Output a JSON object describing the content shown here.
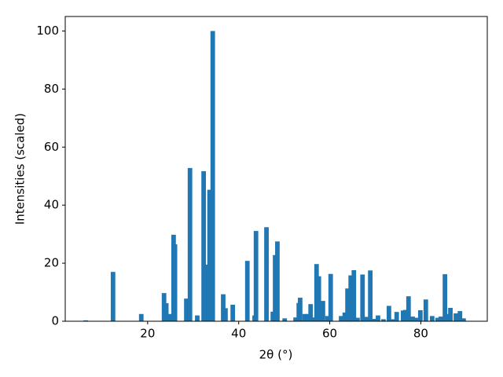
{
  "chart_data": {
    "type": "bar",
    "xlabel": "2θ (°)",
    "ylabel": "Intensities (scaled)",
    "color": "#1f77b4",
    "bar_width": 1,
    "x": [
      6.4,
      12.4,
      18.6,
      23.6,
      24.1,
      24.8,
      25.7,
      26.0,
      28.5,
      29.3,
      30.9,
      32.3,
      33.1,
      33.6,
      34.3,
      36.6,
      37.1,
      38.7,
      41.9,
      43.5,
      43.8,
      46.1,
      47.5,
      48.0,
      48.5,
      50.1,
      52.5,
      53.2,
      53.5,
      54.5,
      55.2,
      55.8,
      56.3,
      57.1,
      57.6,
      58.5,
      59.5,
      60.2,
      62.5,
      63.3,
      63.9,
      64.6,
      65.3,
      66.1,
      67.2,
      68.0,
      68.9,
      69.7,
      70.6,
      71.8,
      73.0,
      73.9,
      74.7,
      76.1,
      76.6,
      77.3,
      78.2,
      78.9,
      79.9,
      81.1,
      82.5,
      83.7,
      84.4,
      85.3,
      85.8,
      86.5,
      87.7,
      88.6,
      89.4
    ],
    "values": [
      0.3,
      17,
      2.5,
      9.7,
      6.2,
      2.5,
      29.8,
      26.5,
      7.8,
      52.8,
      2,
      51.7,
      19.5,
      45.3,
      100,
      9.3,
      4.5,
      5.7,
      20.8,
      2,
      31.1,
      32.4,
      3.3,
      22.8,
      27.5,
      1,
      1.3,
      6.3,
      8.1,
      2.5,
      2.5,
      5.9,
      1.3,
      19.7,
      15.5,
      7,
      1.8,
      16.3,
      1.8,
      3,
      11.3,
      15.8,
      17.6,
      1.2,
      16.1,
      1.5,
      17.5,
      0.8,
      2,
      0.7,
      5.3,
      0.7,
      3.2,
      3.7,
      3.9,
      8.6,
      1.6,
      1.2,
      3.8,
      7.5,
      1.8,
      1.2,
      1.6,
      16.2,
      2.5,
      4.6,
      2.7,
      3.5,
      1
    ],
    "xlim": [
      1.9,
      94.6
    ],
    "xticks": [
      20,
      40,
      60,
      80
    ],
    "ylim": [
      0,
      105
    ],
    "yticks": [
      0,
      20,
      40,
      60,
      80,
      100
    ]
  }
}
